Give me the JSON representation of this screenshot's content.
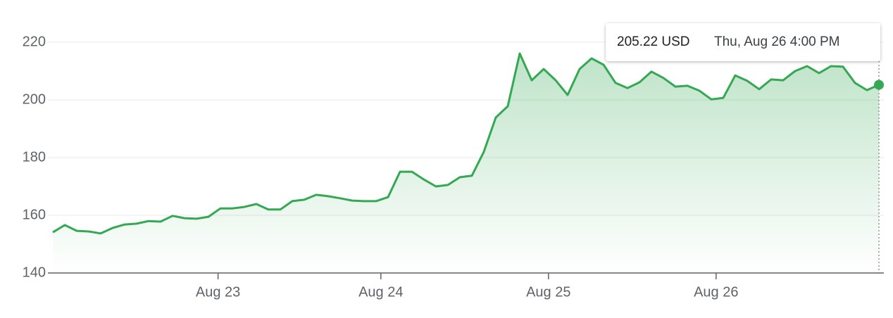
{
  "chart_data": {
    "type": "line",
    "x": [
      0,
      1,
      2,
      3,
      4,
      5,
      6,
      7,
      8,
      9,
      10,
      11,
      12,
      13,
      14,
      15,
      16,
      17,
      18,
      19,
      20,
      21,
      22,
      23,
      24,
      25,
      26,
      27,
      28,
      29,
      30,
      31,
      32,
      33,
      34,
      35,
      36,
      37,
      38,
      39,
      40,
      41,
      42,
      43,
      44,
      45,
      46,
      47,
      48,
      49,
      50,
      51,
      52,
      53,
      54,
      55,
      56,
      57,
      58,
      59,
      60,
      61,
      62,
      63,
      64,
      65,
      66,
      67,
      68,
      69
    ],
    "values": [
      154.1,
      156.6,
      154.6,
      154.4,
      153.7,
      155.6,
      156.8,
      157.1,
      158.0,
      157.8,
      159.8,
      159.0,
      158.8,
      159.5,
      162.4,
      162.4,
      162.9,
      163.9,
      162.0,
      162.0,
      164.9,
      165.4,
      167.1,
      166.6,
      165.9,
      165.1,
      164.9,
      164.9,
      166.3,
      175.1,
      175.1,
      172.4,
      170.0,
      170.5,
      173.2,
      173.7,
      182.0,
      193.9,
      197.8,
      216.1,
      206.8,
      210.7,
      206.8,
      201.7,
      210.7,
      214.4,
      212.2,
      205.9,
      204.1,
      206.1,
      209.8,
      207.6,
      204.6,
      204.9,
      203.2,
      200.2,
      200.7,
      208.5,
      206.6,
      203.7,
      207.1,
      206.8,
      210.0,
      211.7,
      209.3,
      211.7,
      211.5,
      205.9,
      203.4,
      205.22
    ],
    "color": "#34a853",
    "xlim": [
      0,
      69
    ],
    "xticks": [
      {
        "value": 13.8,
        "label": "Aug 23"
      },
      {
        "value": 27.4,
        "label": "Aug 24"
      },
      {
        "value": 41.4,
        "label": "Aug 25"
      },
      {
        "value": 55.4,
        "label": "Aug 26"
      }
    ],
    "ylim": [
      140,
      220
    ],
    "yticks": [
      140,
      160,
      180,
      200,
      220
    ],
    "grid": true,
    "tooltip": {
      "price": "205.22 USD",
      "time": "Thu, Aug 26 4:00 PM"
    }
  }
}
